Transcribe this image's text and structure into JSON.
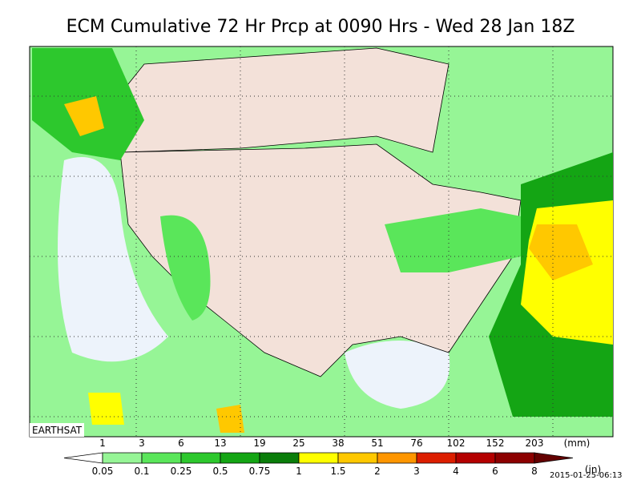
{
  "header": {
    "title": "ECM Cumulative 72 Hr Prcp at 0090 Hrs - Wed 28 Jan 18Z"
  },
  "map": {
    "credit": "EARTHSAT"
  },
  "legend": {
    "mm_labels": [
      "1",
      "3",
      "6",
      "13",
      "19",
      "25",
      "38",
      "51",
      "76",
      "102",
      "152",
      "203"
    ],
    "in_labels": [
      "0.05",
      "0.1",
      "0.25",
      "0.5",
      "0.75",
      "1",
      "1.5",
      "2",
      "3",
      "4",
      "6",
      "8"
    ],
    "mm_unit": "(mm)",
    "in_unit": "(in)",
    "colors": [
      "#ffffff",
      "#96f596",
      "#5ae65a",
      "#2dc82d",
      "#14a514",
      "#0a7d0a",
      "#ffff00",
      "#ffc800",
      "#ff9600",
      "#dc1e00",
      "#b40000",
      "#8c0000",
      "#640000"
    ]
  },
  "footer": {
    "timestamp": "2015-01-25-06:13"
  }
}
